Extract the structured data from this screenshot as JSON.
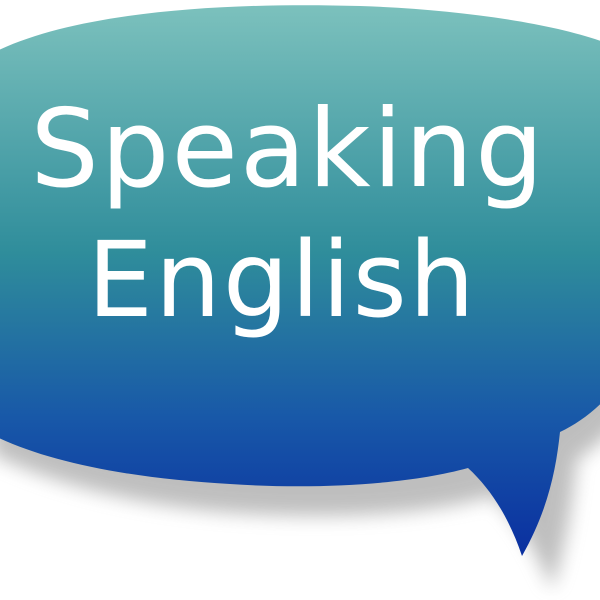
{
  "bubble": {
    "line1": "Speaking",
    "line2": "English",
    "colors": {
      "top": "#6fb8b8",
      "middle": "#2e8a9a",
      "bottom": "#0a2fa0",
      "text": "#ffffff",
      "shadow": "#9a9a9a"
    }
  }
}
